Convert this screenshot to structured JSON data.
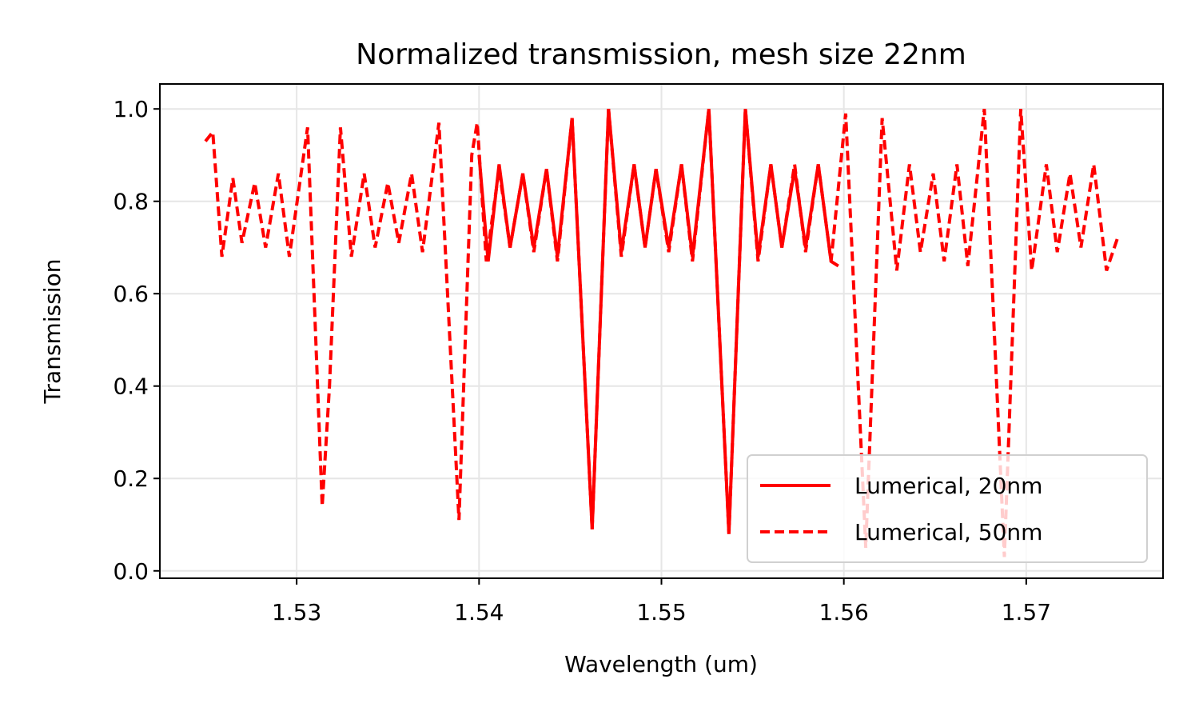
{
  "chart_data": {
    "type": "line",
    "title": "Normalized transmission, mesh size 22nm",
    "xlabel": "Wavelength (um)",
    "ylabel": "Transmission",
    "xlim": [
      1.5225,
      1.5775
    ],
    "ylim": [
      -0.016,
      1.054
    ],
    "xticks": [
      1.53,
      1.54,
      1.55,
      1.56,
      1.57
    ],
    "yticks": [
      {
        "value": 0,
        "label": "0.0"
      },
      0.2,
      0.4,
      0.6,
      0.8,
      {
        "value": 1,
        "label": "1.0"
      }
    ],
    "grid": true,
    "legend": "lower right",
    "series": [
      {
        "name": "Lumerical, 50nm",
        "color": "#ff0000",
        "dash": true,
        "x": [
          1.525,
          1.5254,
          1.5259,
          1.5265,
          1.527,
          1.5277,
          1.5283,
          1.529,
          1.5296,
          1.5306,
          1.5314,
          1.5318,
          1.5324,
          1.533,
          1.5337,
          1.5343,
          1.535,
          1.5356,
          1.5363,
          1.5369,
          1.5378,
          1.5389,
          1.5396,
          1.5399,
          1.5404,
          1.5411,
          1.5417,
          1.5424,
          1.543,
          1.5437,
          1.5443,
          1.5451,
          1.5462,
          1.5471,
          1.5478,
          1.5485,
          1.5491,
          1.5497,
          1.5504,
          1.5511,
          1.5517,
          1.5526,
          1.5537,
          1.5546,
          1.5553,
          1.556,
          1.5566,
          1.5573,
          1.5579,
          1.5586,
          1.5593,
          1.5601,
          1.5612,
          1.5621,
          1.5629,
          1.5636,
          1.5642,
          1.5649,
          1.5655,
          1.5662,
          1.5668,
          1.5677,
          1.5688,
          1.5697,
          1.5703,
          1.5711,
          1.5717,
          1.5724,
          1.573,
          1.5737,
          1.5744,
          1.575
        ],
        "values": [
          0.93,
          0.95,
          0.68,
          0.85,
          0.71,
          0.84,
          0.7,
          0.86,
          0.68,
          0.96,
          0.14,
          0.4,
          0.96,
          0.68,
          0.86,
          0.7,
          0.84,
          0.71,
          0.86,
          0.69,
          0.97,
          0.11,
          0.9,
          0.97,
          0.67,
          0.87,
          0.7,
          0.86,
          0.69,
          0.87,
          0.67,
          0.98,
          0.09,
          1.0,
          0.68,
          0.88,
          0.7,
          0.87,
          0.69,
          0.88,
          0.67,
          1.0,
          0.08,
          1.0,
          0.67,
          0.88,
          0.7,
          0.88,
          0.69,
          0.88,
          0.67,
          0.99,
          0.05,
          0.98,
          0.65,
          0.88,
          0.69,
          0.86,
          0.67,
          0.88,
          0.66,
          1.0,
          0.03,
          1.0,
          0.65,
          0.88,
          0.69,
          0.86,
          0.7,
          0.88,
          0.65,
          0.72
        ]
      },
      {
        "name": "Lumerical, 20nm",
        "color": "#ff0000",
        "dash": false,
        "x": [
          1.54,
          1.5405,
          1.5411,
          1.5417,
          1.5424,
          1.543,
          1.5437,
          1.5443,
          1.5451,
          1.5462,
          1.5471,
          1.5478,
          1.5485,
          1.5491,
          1.5497,
          1.5504,
          1.5511,
          1.5517,
          1.5526,
          1.5537,
          1.5546,
          1.5553,
          1.556,
          1.5566,
          1.5573,
          1.5579,
          1.5586,
          1.5593,
          1.5597
        ],
        "values": [
          0.9,
          0.67,
          0.88,
          0.7,
          0.86,
          0.7,
          0.87,
          0.68,
          0.98,
          0.09,
          1.0,
          0.69,
          0.88,
          0.7,
          0.87,
          0.7,
          0.88,
          0.68,
          1.0,
          0.08,
          1.0,
          0.68,
          0.88,
          0.7,
          0.87,
          0.7,
          0.88,
          0.67,
          0.66
        ]
      }
    ]
  }
}
